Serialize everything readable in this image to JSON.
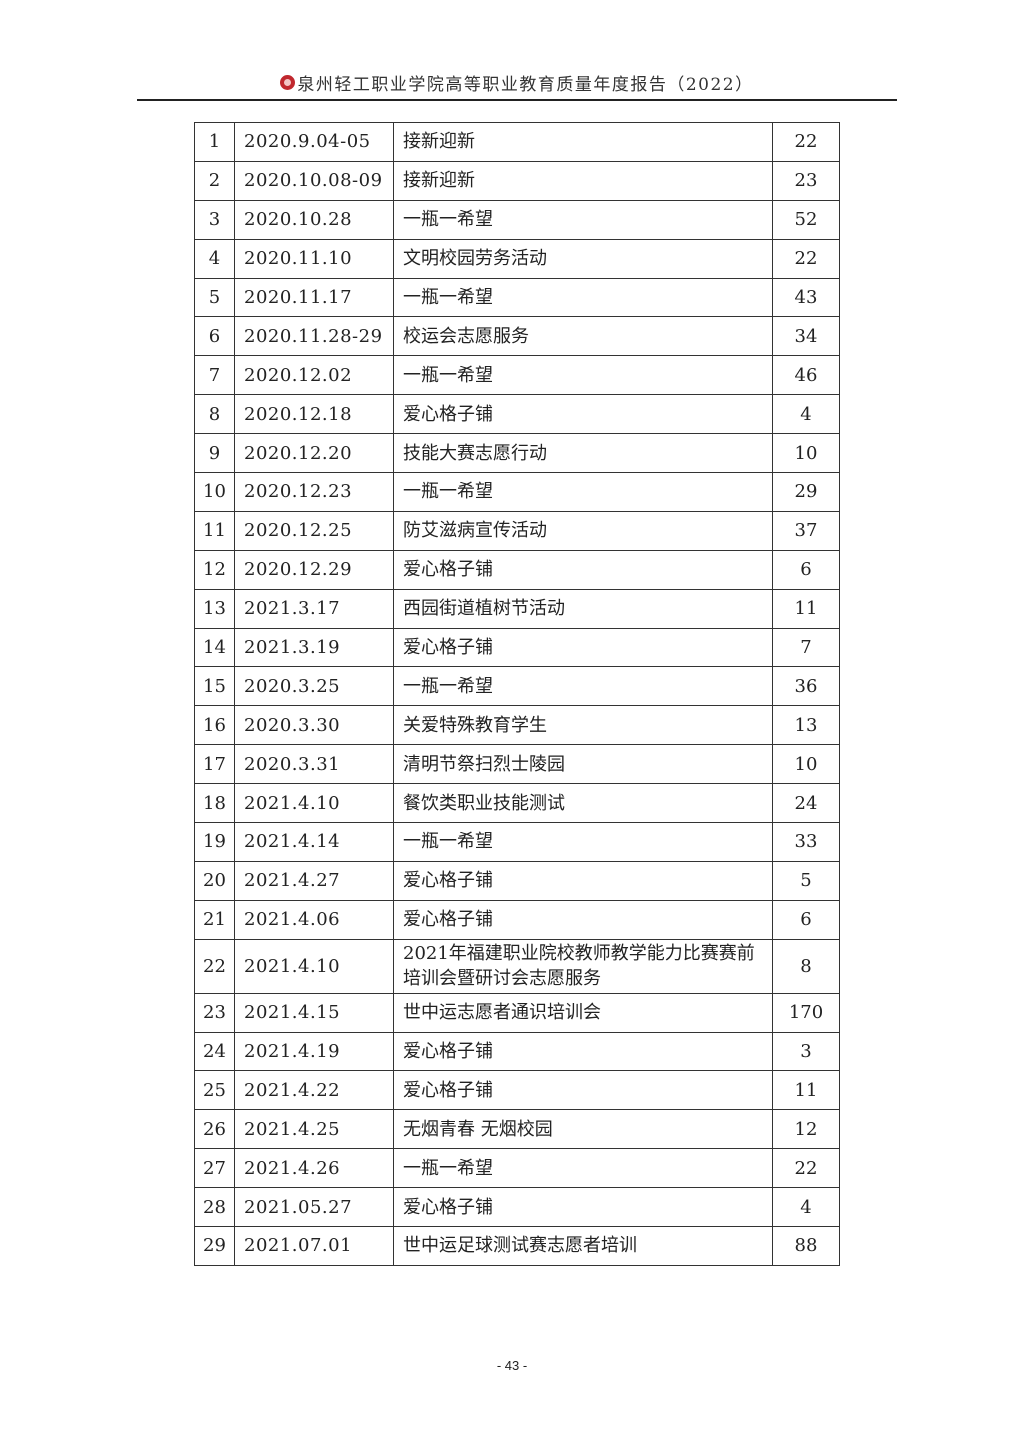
{
  "header": {
    "title": "泉州轻工职业学院高等职业教育质量年度报告（2022）",
    "logo": "泉州轻工职业学院"
  },
  "table": {
    "rows": [
      [
        "1",
        "2020.9.04-05",
        "接新迎新",
        "22"
      ],
      [
        "2",
        "2020.10.08-09",
        "接新迎新",
        "23"
      ],
      [
        "3",
        "2020.10.28",
        "一瓶一希望",
        "52"
      ],
      [
        "4",
        "2020.11.10",
        "文明校园劳务活动",
        "22"
      ],
      [
        "5",
        "2020.11.17",
        "一瓶一希望",
        "43"
      ],
      [
        "6",
        "2020.11.28-29",
        "校运会志愿服务",
        "34"
      ],
      [
        "7",
        "2020.12.02",
        "一瓶一希望",
        "46"
      ],
      [
        "8",
        "2020.12.18",
        "爱心格子铺",
        "4"
      ],
      [
        "9",
        "2020.12.20",
        "技能大赛志愿行动",
        "10"
      ],
      [
        "10",
        "2020.12.23",
        "一瓶一希望",
        "29"
      ],
      [
        "11",
        "2020.12.25",
        "防艾滋病宣传活动",
        "37"
      ],
      [
        "12",
        "2020.12.29",
        "爱心格子铺",
        "6"
      ],
      [
        "13",
        "2021.3.17",
        "西园街道植树节活动",
        "11"
      ],
      [
        "14",
        "2021.3.19",
        "爱心格子铺",
        "7"
      ],
      [
        "15",
        "2020.3.25",
        "一瓶一希望",
        "36"
      ],
      [
        "16",
        "2020.3.30",
        "关爱特殊教育学生",
        "13"
      ],
      [
        "17",
        "2020.3.31",
        "清明节祭扫烈士陵园",
        "10"
      ],
      [
        "18",
        "2021.4.10",
        "餐饮类职业技能测试",
        "24"
      ],
      [
        "19",
        "2021.4.14",
        "一瓶一希望",
        "33"
      ],
      [
        "20",
        "2021.4.27",
        "爱心格子铺",
        "5"
      ],
      [
        "21",
        "2021.4.06",
        "爱心格子铺",
        "6"
      ],
      [
        "22",
        "2021.4.10",
        "2021年福建职业院校教师教学能力比赛赛前培训会暨研讨会志愿服务",
        "8"
      ],
      [
        "23",
        "2021.4.15",
        "世中运志愿者通识培训会",
        "170"
      ],
      [
        "24",
        "2021.4.19",
        "爱心格子铺",
        "3"
      ],
      [
        "25",
        "2021.4.22",
        "爱心格子铺",
        "11"
      ],
      [
        "26",
        "2021.4.25",
        "无烟青春 无烟校园",
        "12"
      ],
      [
        "27",
        "2021.4.26",
        "一瓶一希望",
        "22"
      ],
      [
        "28",
        "2021.05.27",
        "爱心格子铺",
        "4"
      ],
      [
        "29",
        "2021.07.01",
        "世中运足球测试赛志愿者培训",
        "88"
      ]
    ]
  },
  "footer": {
    "page_number": "- 43 -"
  }
}
